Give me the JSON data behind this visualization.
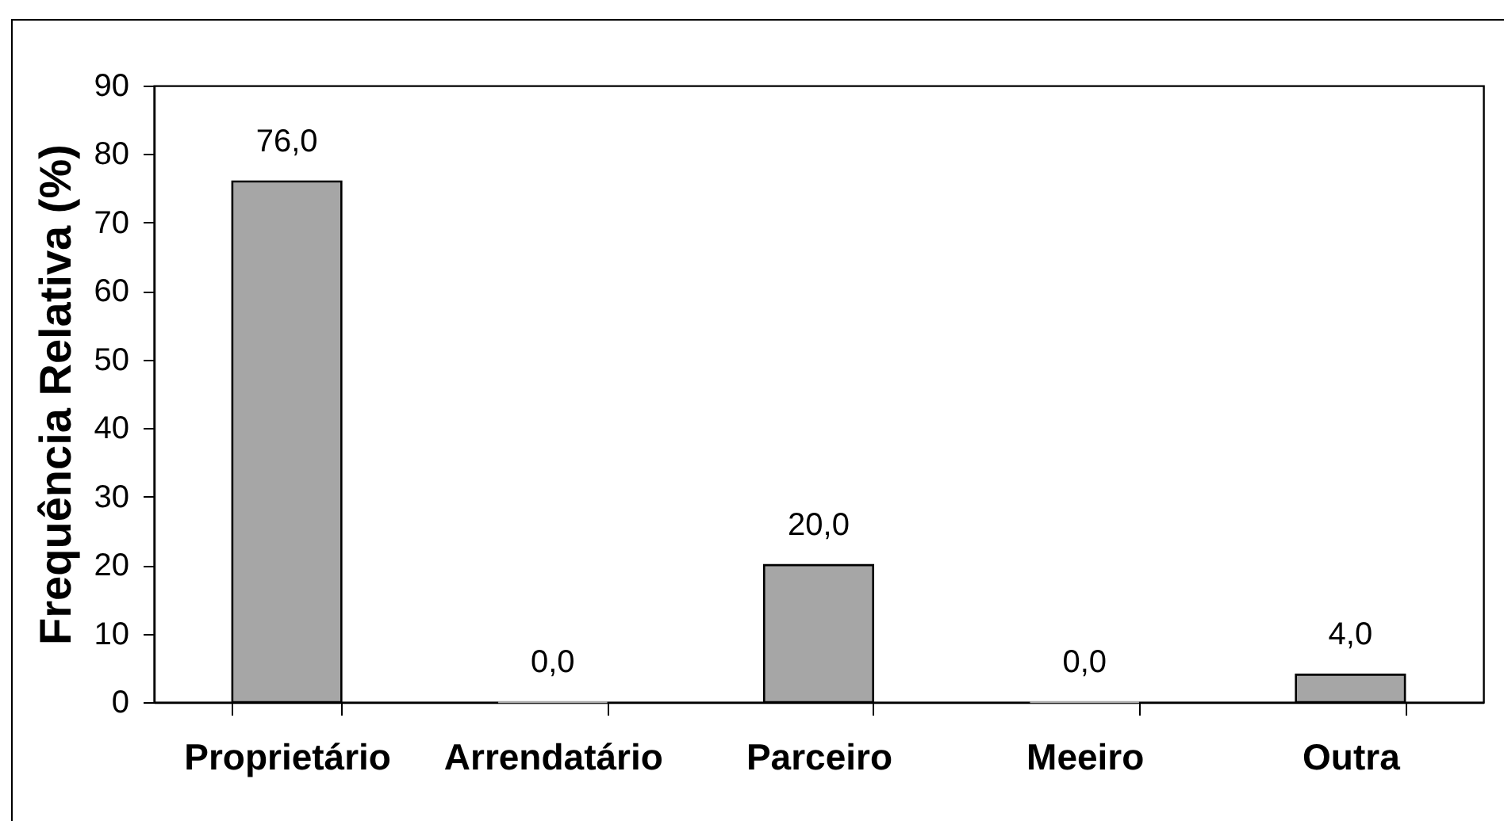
{
  "chart_data": {
    "type": "bar",
    "ylabel": "Frequência Relativa (%)",
    "categories": [
      "Proprietário",
      "Arrendatário",
      "Parceiro",
      "Meeiro",
      "Outra"
    ],
    "values": [
      76.0,
      0.0,
      20.0,
      0.0,
      4.0
    ],
    "value_labels": [
      "76,0",
      "0,0",
      "20,0",
      "0,0",
      "4,0"
    ],
    "color": "#a6a6a6",
    "ylim": [
      0,
      90
    ],
    "yticks": [
      0,
      10,
      20,
      30,
      40,
      50,
      60,
      70,
      80,
      90
    ]
  }
}
